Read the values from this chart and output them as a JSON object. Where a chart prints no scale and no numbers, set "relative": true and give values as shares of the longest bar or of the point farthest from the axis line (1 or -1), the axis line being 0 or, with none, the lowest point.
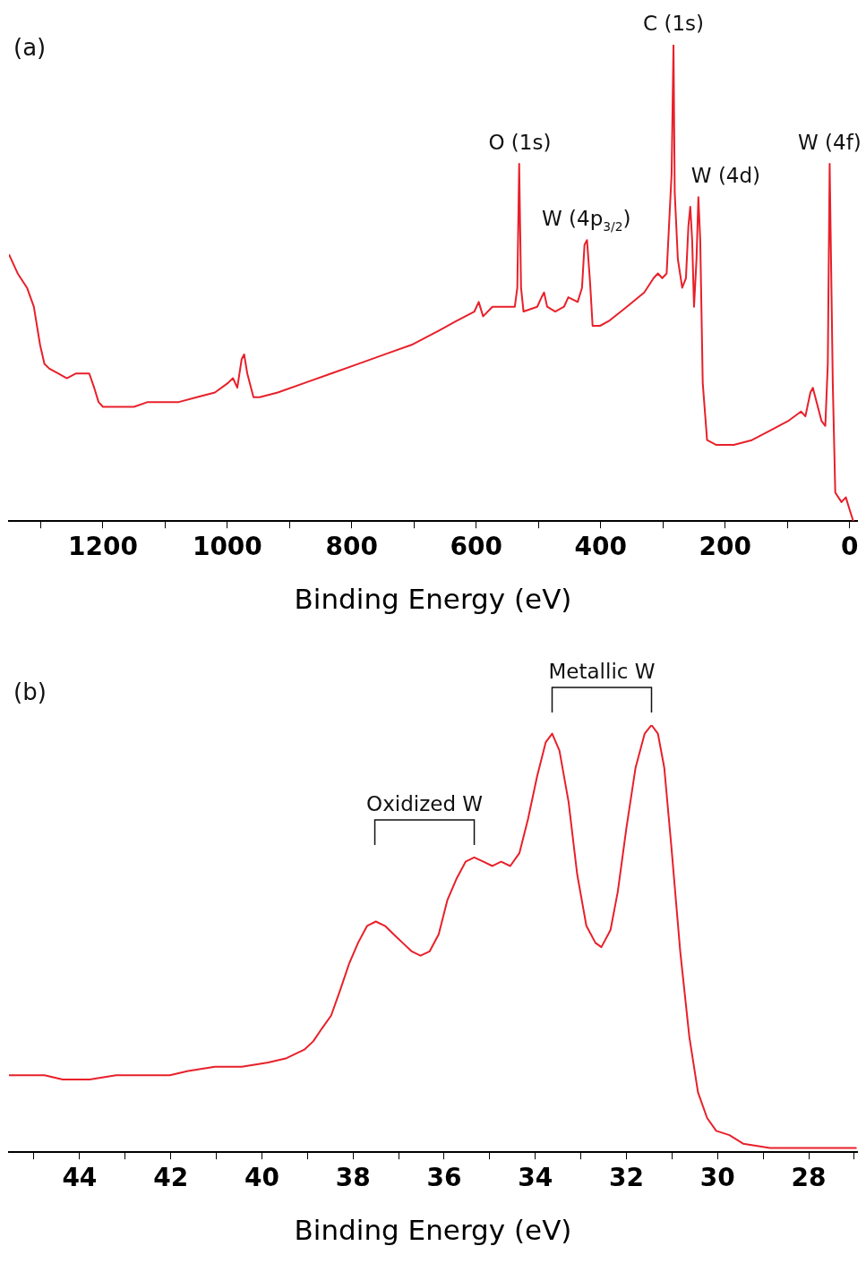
{
  "chart_data": [
    {
      "type": "line",
      "title": "(a)",
      "xlabel": "Binding Energy (eV)",
      "relative": true,
      "marker": "none",
      "grid": false,
      "legend": false,
      "tick_labels": "x",
      "xlim": [
        1351,
        -12
      ],
      "xticks": [
        {
          "value": 1300,
          "label": null
        },
        1200,
        {
          "value": 1100,
          "label": null
        },
        1000,
        {
          "value": 900,
          "label": null
        },
        800,
        {
          "value": 700,
          "label": null
        },
        600,
        {
          "value": 500,
          "label": null
        },
        400,
        {
          "value": 300,
          "label": null
        },
        200,
        {
          "value": 100,
          "label": null
        },
        0
      ],
      "annotations": [
        {
          "text": "O (1s)",
          "x": 530,
          "y": 0.75
        },
        {
          "text": "W (4p$_{3/2}$)",
          "x": 423,
          "y": 0.59
        },
        {
          "text": "C (1s)",
          "x": 283,
          "y": 1.0
        },
        {
          "text": "W (4d)",
          "x": 243,
          "y": 0.68
        },
        {
          "text": "W (4f)",
          "x": 32,
          "y": 0.75
        }
      ],
      "series": [
        {
          "color": "#e8202a",
          "x": [
            1351,
            1337,
            1322,
            1311,
            1301,
            1294,
            1286,
            1272,
            1258,
            1243,
            1229,
            1222,
            1214,
            1207,
            1200,
            1178,
            1150,
            1128,
            1106,
            1078,
            1049,
            1020,
            999,
            991,
            984,
            977,
            973,
            968,
            958,
            948,
            919,
            876,
            833,
            790,
            747,
            704,
            660,
            632,
            603,
            596,
            589,
            574,
            545,
            538,
            534,
            531,
            528,
            524,
            502,
            495,
            491,
            486,
            473,
            459,
            452,
            437,
            430,
            426,
            422,
            417,
            413,
            401,
            387,
            358,
            330,
            315,
            308,
            301,
            294,
            286,
            283,
            281,
            276,
            269,
            263,
            259,
            256,
            253,
            250,
            246,
            243,
            240,
            236,
            229,
            214,
            186,
            157,
            128,
            99,
            78,
            71,
            63,
            59,
            53,
            45,
            39,
            35,
            32,
            27,
            23,
            13,
            6,
            -1,
            -6
          ],
          "values": [
            0.56,
            0.52,
            0.49,
            0.45,
            0.37,
            0.33,
            0.32,
            0.31,
            0.3,
            0.31,
            0.31,
            0.31,
            0.28,
            0.25,
            0.24,
            0.24,
            0.24,
            0.25,
            0.25,
            0.25,
            0.26,
            0.27,
            0.29,
            0.3,
            0.28,
            0.34,
            0.35,
            0.31,
            0.26,
            0.26,
            0.27,
            0.29,
            0.31,
            0.33,
            0.35,
            0.37,
            0.4,
            0.42,
            0.44,
            0.46,
            0.43,
            0.45,
            0.45,
            0.45,
            0.49,
            0.75,
            0.49,
            0.44,
            0.45,
            0.47,
            0.48,
            0.45,
            0.44,
            0.45,
            0.47,
            0.46,
            0.49,
            0.58,
            0.59,
            0.5,
            0.41,
            0.41,
            0.42,
            0.45,
            0.48,
            0.51,
            0.52,
            0.51,
            0.52,
            0.73,
            1.0,
            0.69,
            0.55,
            0.49,
            0.51,
            0.62,
            0.66,
            0.59,
            0.45,
            0.55,
            0.68,
            0.59,
            0.29,
            0.17,
            0.16,
            0.16,
            0.17,
            0.19,
            0.21,
            0.23,
            0.22,
            0.27,
            0.28,
            0.25,
            0.21,
            0.2,
            0.33,
            0.75,
            0.29,
            0.06,
            0.04,
            0.05,
            0.02,
            0
          ]
        }
      ]
    },
    {
      "type": "line",
      "title": "(b)",
      "xlabel": "Binding Energy (eV)",
      "relative": true,
      "marker": "none",
      "grid": false,
      "legend": false,
      "tick_labels": "x",
      "xlim": [
        45.55,
        26.94
      ],
      "xticks": [
        {
          "value": 45,
          "label": null
        },
        44,
        {
          "value": 43,
          "label": null
        },
        42,
        {
          "value": 41,
          "label": null
        },
        40,
        {
          "value": 39,
          "label": null
        },
        38,
        {
          "value": 37,
          "label": null
        },
        36,
        {
          "value": 35,
          "label": null
        },
        34,
        {
          "value": 33,
          "label": null
        },
        32,
        {
          "value": 31,
          "label": null
        },
        30,
        {
          "value": 29,
          "label": null
        },
        28,
        {
          "value": 27,
          "label": null
        }
      ],
      "annotations": [
        {
          "text": "Oxidized W",
          "x": 35.34,
          "y": 0.69
        },
        {
          "text": "Metallic W",
          "x": 31.45,
          "y": 1.0
        }
      ],
      "series": [
        {
          "color": "#e8202a",
          "x": [
            45.55,
            45.16,
            44.77,
            44.37,
            43.78,
            43.2,
            42.61,
            42.02,
            41.62,
            41.03,
            40.44,
            39.86,
            39.46,
            39.07,
            38.87,
            38.68,
            38.48,
            38.28,
            38.09,
            37.89,
            37.69,
            37.5,
            37.3,
            37.11,
            36.91,
            36.71,
            36.52,
            36.32,
            36.12,
            35.93,
            35.73,
            35.53,
            35.34,
            35.14,
            34.94,
            34.75,
            34.55,
            34.35,
            34.16,
            33.96,
            33.77,
            33.63,
            33.47,
            33.27,
            33.08,
            32.88,
            32.68,
            32.55,
            32.35,
            32.19,
            32.0,
            31.8,
            31.6,
            31.45,
            31.31,
            31.17,
            31.01,
            30.82,
            30.62,
            30.43,
            30.23,
            30.03,
            29.74,
            29.44,
            28.85,
            28.07,
            26.95
          ],
          "values": [
            0.18,
            0.18,
            0.18,
            0.17,
            0.17,
            0.18,
            0.18,
            0.18,
            0.19,
            0.2,
            0.2,
            0.21,
            0.22,
            0.24,
            0.26,
            0.29,
            0.32,
            0.38,
            0.44,
            0.49,
            0.53,
            0.54,
            0.53,
            0.51,
            0.49,
            0.47,
            0.46,
            0.47,
            0.51,
            0.59,
            0.64,
            0.68,
            0.69,
            0.68,
            0.67,
            0.68,
            0.67,
            0.7,
            0.78,
            0.88,
            0.96,
            0.98,
            0.94,
            0.82,
            0.65,
            0.53,
            0.49,
            0.48,
            0.52,
            0.61,
            0.76,
            0.9,
            0.98,
            1.0,
            0.98,
            0.9,
            0.71,
            0.47,
            0.27,
            0.14,
            0.08,
            0.05,
            0.04,
            0.02,
            0.01,
            0.01,
            0.01
          ]
        }
      ]
    }
  ]
}
